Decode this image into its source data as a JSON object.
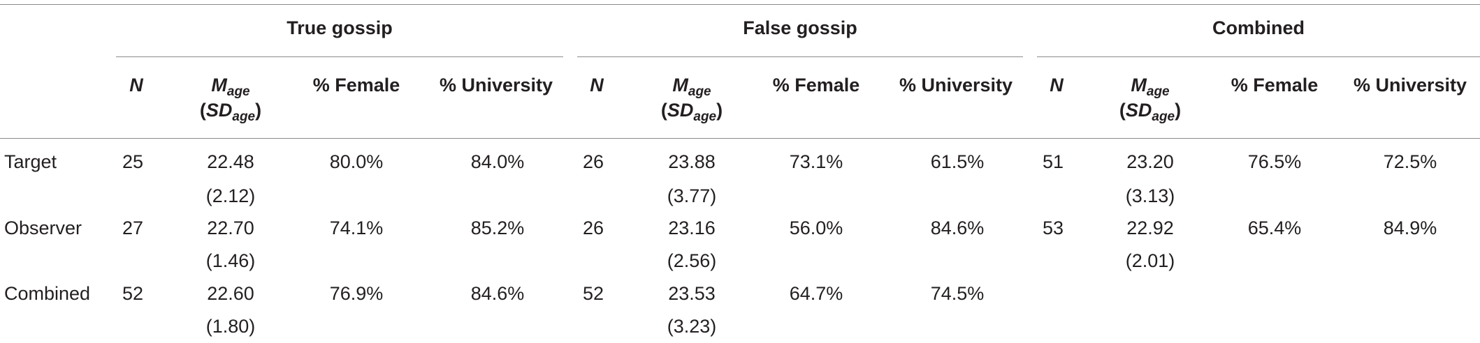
{
  "groups": [
    "True gossip",
    "False gossip",
    "Combined"
  ],
  "headers": {
    "n": "N",
    "m_main": "M",
    "m_sub": "age",
    "sd_open": "(",
    "sd_main": "SD",
    "sd_sub": "age",
    "sd_close": ")",
    "female": "% Female",
    "university": "% University"
  },
  "rows": [
    {
      "label": "Target",
      "true_gossip": {
        "n": "25",
        "mean": "22.48",
        "sd": "(2.12)",
        "female": "80.0%",
        "university": "84.0%"
      },
      "false_gossip": {
        "n": "26",
        "mean": "23.88",
        "sd": "(3.77)",
        "female": "73.1%",
        "university": "61.5%"
      },
      "combined": {
        "n": "51",
        "mean": "23.20",
        "sd": "(3.13)",
        "female": "76.5%",
        "university": "72.5%"
      }
    },
    {
      "label": "Observer",
      "true_gossip": {
        "n": "27",
        "mean": "22.70",
        "sd": "(1.46)",
        "female": "74.1%",
        "university": "85.2%"
      },
      "false_gossip": {
        "n": "26",
        "mean": "23.16",
        "sd": "(2.56)",
        "female": "56.0%",
        "university": "84.6%"
      },
      "combined": {
        "n": "53",
        "mean": "22.92",
        "sd": "(2.01)",
        "female": "65.4%",
        "university": "84.9%"
      }
    },
    {
      "label": "Combined",
      "true_gossip": {
        "n": "52",
        "mean": "22.60",
        "sd": "(1.80)",
        "female": "76.9%",
        "university": "84.6%"
      },
      "false_gossip": {
        "n": "52",
        "mean": "23.53",
        "sd": "(3.23)",
        "female": "64.7%",
        "university": "74.5%"
      }
    }
  ]
}
